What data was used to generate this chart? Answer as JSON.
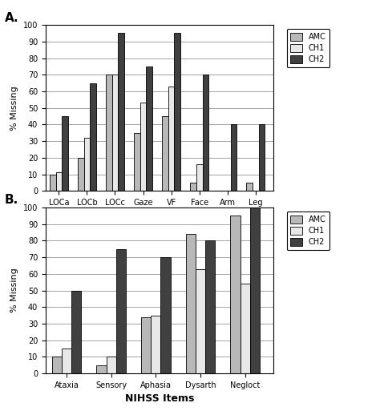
{
  "panel_A": {
    "categories": [
      "LOCa",
      "LOCb",
      "LOCc",
      "Gaze",
      "VF",
      "Face",
      "Arm",
      "Leg"
    ],
    "AMC": [
      10,
      20,
      70,
      35,
      45,
      5,
      0,
      5
    ],
    "CH1": [
      11,
      32,
      70,
      53,
      63,
      16,
      0,
      0
    ],
    "CH2": [
      45,
      65,
      95,
      75,
      95,
      70,
      40,
      40
    ]
  },
  "panel_B": {
    "categories": [
      "Ataxia",
      "Sensory",
      "Aphasia",
      "Dysarth",
      "Negloct"
    ],
    "AMC": [
      10,
      5,
      34,
      84,
      95
    ],
    "CH1": [
      15,
      10,
      35,
      63,
      54
    ],
    "CH2": [
      50,
      75,
      70,
      80,
      100
    ]
  },
  "colors": {
    "AMC": "#b8b8b8",
    "CH1": "#e8e8e8",
    "CH2": "#404040"
  },
  "series_keys": [
    "AMC",
    "CH1",
    "CH2"
  ],
  "ylabel": "% Missing",
  "xlabel": "NIHSS Items",
  "label_A": "A.",
  "label_B": "B.",
  "bar_width": 0.22,
  "figsize": [
    4.74,
    5.18
  ],
  "dpi": 100
}
